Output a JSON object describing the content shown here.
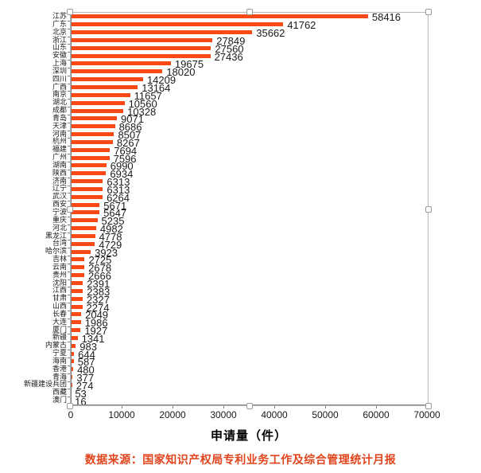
{
  "page": {
    "background": "#ffffff"
  },
  "chart_data": {
    "type": "bar",
    "orientation": "horizontal",
    "title": "",
    "xlabel": "申请量（件）",
    "ylabel": "",
    "xlim": [
      0,
      70000
    ],
    "x_ticks": [
      0,
      10000,
      20000,
      30000,
      40000,
      50000,
      60000,
      70000
    ],
    "grid": false,
    "legend": false,
    "value_labels_shown": true,
    "bar_color": "#f94a16",
    "value_label_color": "#1a1a1a",
    "categories": [
      "江苏",
      "广东",
      "北京",
      "浙江",
      "山东",
      "安徽",
      "上海",
      "深圳",
      "四川",
      "广西",
      "南京",
      "湖北",
      "成都",
      "青岛",
      "天津",
      "河南",
      "杭州",
      "福建",
      "广州",
      "湖南",
      "陕西",
      "济南",
      "辽宁",
      "武汉",
      "西安",
      "宁波",
      "重庆",
      "河北",
      "黑龙江",
      "台湾",
      "哈尔滨",
      "吉林",
      "云南",
      "贵州",
      "沈阳",
      "江西",
      "甘肃",
      "山西",
      "长春",
      "大连",
      "厦门",
      "新疆",
      "内蒙古",
      "宁夏",
      "海南",
      "香港",
      "青海",
      "新疆建设兵团",
      "西藏",
      "澳门"
    ],
    "values": [
      58416,
      41762,
      35662,
      27849,
      27560,
      27436,
      19675,
      18020,
      14209,
      13164,
      11657,
      10560,
      10328,
      9071,
      8686,
      8507,
      8267,
      7694,
      7596,
      6990,
      6934,
      6313,
      6313,
      6264,
      5671,
      5647,
      5235,
      4982,
      4778,
      4729,
      3923,
      2725,
      2678,
      2666,
      2391,
      2383,
      2327,
      2274,
      2049,
      1986,
      1927,
      1341,
      983,
      644,
      587,
      480,
      377,
      274,
      53,
      16
    ]
  },
  "source_note": {
    "text": "数据来源：国家知识产权局专利业务工作及综合管理统计月报",
    "color": "#e0441c"
  }
}
